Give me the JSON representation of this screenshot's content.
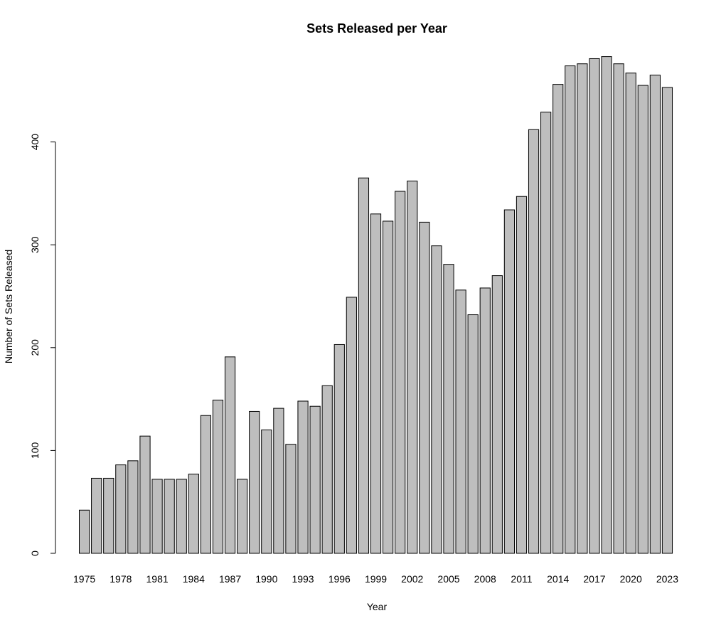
{
  "chart_data": {
    "type": "bar",
    "title": "Sets Released per Year",
    "xlabel": "Year",
    "ylabel": "Number of Sets Released",
    "ylim": [
      0,
      500
    ],
    "yticks": [
      0,
      100,
      200,
      300,
      400
    ],
    "categories": [
      "1975",
      "1976",
      "1977",
      "1978",
      "1979",
      "1980",
      "1981",
      "1982",
      "1983",
      "1984",
      "1985",
      "1986",
      "1987",
      "1988",
      "1989",
      "1990",
      "1991",
      "1992",
      "1993",
      "1994",
      "1995",
      "1996",
      "1997",
      "1998",
      "1999",
      "2000",
      "2001",
      "2002",
      "2003",
      "2004",
      "2005",
      "2006",
      "2007",
      "2008",
      "2009",
      "2010",
      "2011",
      "2012",
      "2013",
      "2014",
      "2015",
      "2016",
      "2017",
      "2018",
      "2019",
      "2020",
      "2021",
      "2022",
      "2023"
    ],
    "shown_xtick_labels": [
      "1975",
      "1978",
      "1981",
      "1984",
      "1987",
      "1990",
      "1993",
      "1996",
      "1999",
      "2002",
      "2005",
      "2008",
      "2011",
      "2014",
      "2017",
      "2020",
      "2023"
    ],
    "values": [
      42,
      73,
      73,
      86,
      90,
      114,
      72,
      72,
      72,
      77,
      134,
      149,
      191,
      72,
      138,
      120,
      141,
      106,
      148,
      143,
      163,
      203,
      249,
      365,
      330,
      323,
      352,
      362,
      322,
      299,
      281,
      256,
      232,
      258,
      270,
      334,
      347,
      412,
      429,
      456,
      474,
      476,
      481,
      483,
      476,
      467,
      455,
      465,
      453
    ],
    "bar_color": "#bebebe",
    "border_color": "#000000",
    "grid": false,
    "legend": "none"
  }
}
